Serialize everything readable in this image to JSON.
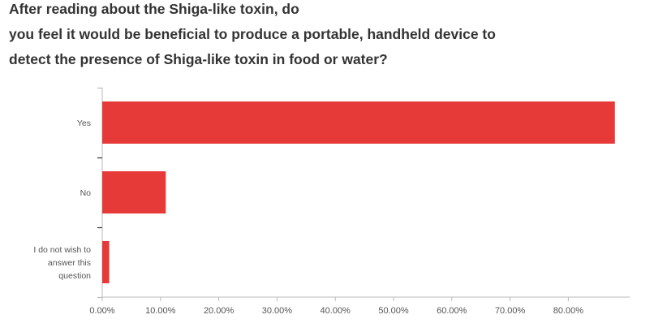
{
  "chart_data": {
    "type": "bar",
    "orientation": "horizontal",
    "title_lines": [
      "After reading about the Shiga-like toxin, do",
      "you feel it would be beneficial to produce a portable, handheld device to",
      "detect the presence of Shiga-like toxin in food or water?"
    ],
    "categories": [
      [
        "Yes"
      ],
      [
        "No"
      ],
      [
        "I do not wish to",
        "answer this",
        "question"
      ]
    ],
    "values": [
      88.0,
      10.9,
      1.2
    ],
    "xlim": [
      0,
      90
    ],
    "x_ticks": [
      "0.00%",
      "10.00%",
      "20.00%",
      "30.00%",
      "40.00%",
      "50.00%",
      "60.00%",
      "70.00%",
      "80.00%"
    ],
    "x_tick_values": [
      0,
      10,
      20,
      30,
      40,
      50,
      60,
      70,
      80
    ],
    "bar_color": "#e53a38",
    "grid": false
  }
}
